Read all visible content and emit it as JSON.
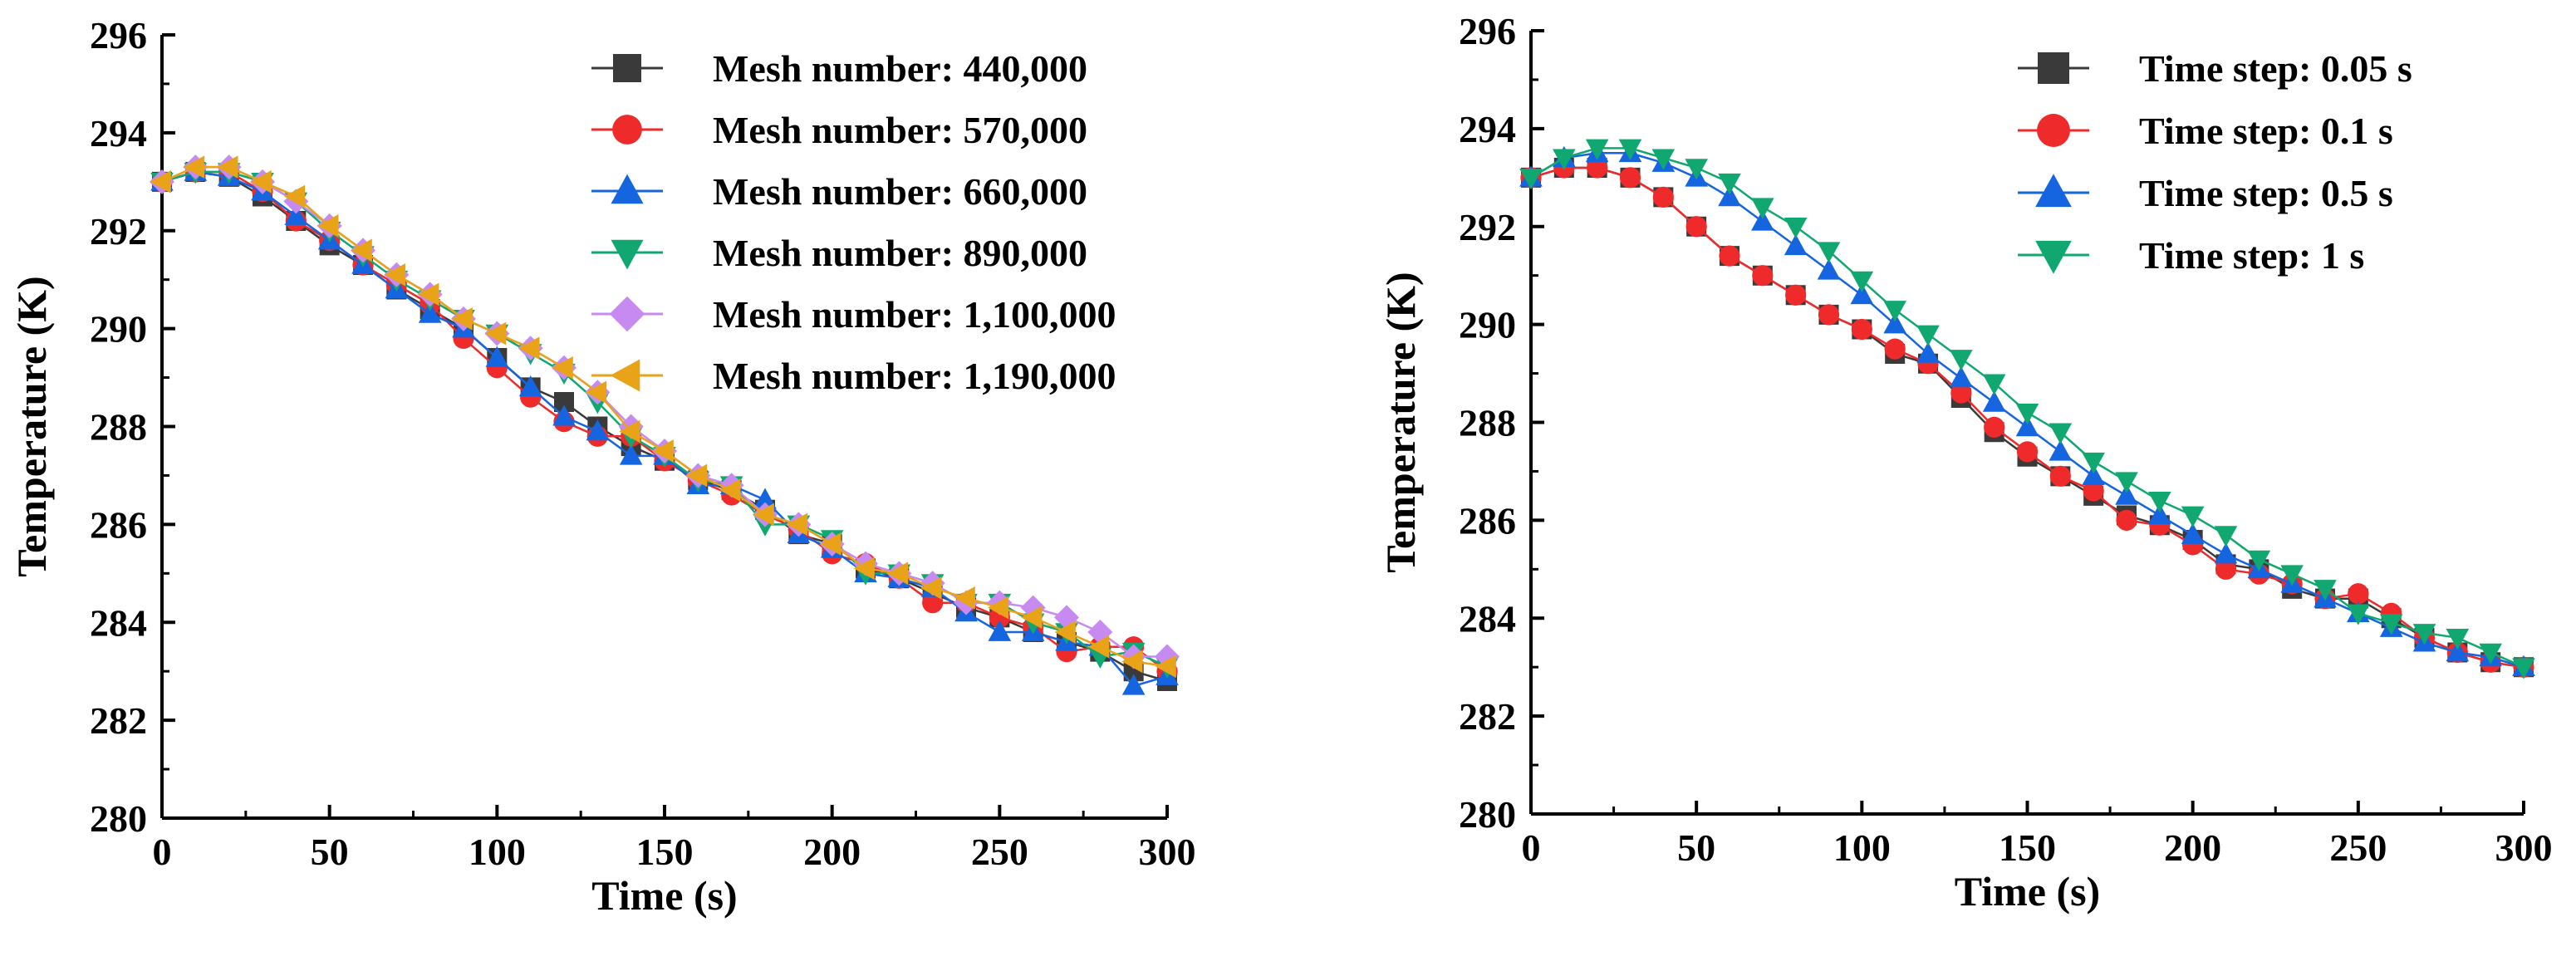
{
  "chart_data": [
    {
      "type": "line",
      "title": "",
      "xlabel": "Time (s)",
      "ylabel": "Temperature (K)",
      "xlim": [
        0,
        300
      ],
      "ylim": [
        280,
        296
      ],
      "xticks": [
        0,
        50,
        100,
        150,
        200,
        250,
        300
      ],
      "yticks": [
        280,
        282,
        284,
        286,
        288,
        290,
        292,
        294,
        296
      ],
      "legend_position": "top-right",
      "x": [
        0,
        10,
        20,
        30,
        40,
        50,
        60,
        70,
        80,
        90,
        100,
        110,
        120,
        130,
        140,
        150,
        160,
        170,
        180,
        190,
        200,
        210,
        220,
        230,
        240,
        250,
        260,
        270,
        280,
        290,
        300
      ],
      "series": [
        {
          "name": "Mesh number: 440,000",
          "color": "#3a3a3a",
          "marker": "square",
          "values": [
            293.0,
            293.2,
            293.1,
            292.7,
            292.2,
            291.7,
            291.3,
            290.8,
            290.4,
            290.0,
            289.4,
            288.8,
            288.5,
            288.0,
            287.6,
            287.3,
            286.9,
            286.7,
            286.3,
            285.8,
            285.6,
            285.1,
            284.9,
            284.6,
            284.3,
            284.1,
            283.8,
            283.6,
            283.4,
            283.0,
            282.8
          ]
        },
        {
          "name": "Mesh number: 570,000",
          "color": "#ee2a2a",
          "marker": "circle",
          "values": [
            293.0,
            293.2,
            293.2,
            292.8,
            292.2,
            291.8,
            291.3,
            290.9,
            290.5,
            289.8,
            289.2,
            288.6,
            288.1,
            287.8,
            287.8,
            287.3,
            286.9,
            286.6,
            286.2,
            285.9,
            285.4,
            285.2,
            284.9,
            284.4,
            284.4,
            284.1,
            283.9,
            283.4,
            283.5,
            283.5,
            283.0
          ]
        },
        {
          "name": "Mesh number: 660,000",
          "color": "#1565e0",
          "marker": "triangle-up",
          "values": [
            293.0,
            293.2,
            293.1,
            292.8,
            292.3,
            291.8,
            291.3,
            290.8,
            290.3,
            290.0,
            289.4,
            288.8,
            288.2,
            287.9,
            287.4,
            287.4,
            286.8,
            286.8,
            286.5,
            285.8,
            285.5,
            285.0,
            284.9,
            284.7,
            284.2,
            283.8,
            283.8,
            283.6,
            283.5,
            282.7,
            282.9
          ]
        },
        {
          "name": "Mesh number: 890,000",
          "color": "#10a870",
          "marker": "triangle-down",
          "values": [
            293.0,
            293.2,
            293.2,
            293.0,
            292.6,
            292.0,
            291.5,
            291.0,
            290.6,
            290.2,
            289.9,
            289.5,
            289.1,
            288.5,
            287.8,
            287.4,
            286.9,
            286.8,
            286.0,
            286.0,
            285.7,
            285.0,
            285.0,
            284.8,
            284.4,
            284.4,
            284.0,
            283.8,
            283.3,
            283.4,
            283.1
          ]
        },
        {
          "name": "Mesh number: 1,100,000",
          "color": "#c78af0",
          "marker": "diamond",
          "values": [
            293.0,
            293.3,
            293.3,
            293.0,
            292.6,
            292.1,
            291.6,
            291.1,
            290.7,
            290.2,
            289.9,
            289.6,
            289.2,
            288.7,
            288.0,
            287.5,
            287.0,
            286.8,
            286.2,
            286.0,
            285.6,
            285.2,
            285.0,
            284.8,
            284.4,
            284.4,
            284.3,
            284.1,
            283.8,
            283.3,
            283.3
          ]
        },
        {
          "name": "Mesh number: 1,190,000",
          "color": "#e8a318",
          "marker": "triangle-left",
          "values": [
            293.0,
            293.3,
            293.3,
            293.0,
            292.7,
            292.1,
            291.6,
            291.1,
            290.7,
            290.2,
            289.9,
            289.6,
            289.2,
            288.7,
            287.9,
            287.5,
            287.0,
            286.7,
            286.2,
            286.0,
            285.6,
            285.1,
            285.0,
            284.7,
            284.5,
            284.3,
            284.1,
            283.8,
            283.5,
            283.2,
            283.1
          ]
        }
      ]
    },
    {
      "type": "line",
      "title": "",
      "xlabel": "Time (s)",
      "ylabel": "Temperature (K)",
      "xlim": [
        0,
        300
      ],
      "ylim": [
        280,
        296
      ],
      "xticks": [
        0,
        50,
        100,
        150,
        200,
        250,
        300
      ],
      "yticks": [
        280,
        282,
        284,
        286,
        288,
        290,
        292,
        294,
        296
      ],
      "legend_position": "top-right",
      "x": [
        0,
        10,
        20,
        30,
        40,
        50,
        60,
        70,
        80,
        90,
        100,
        110,
        120,
        130,
        140,
        150,
        160,
        170,
        180,
        190,
        200,
        210,
        220,
        230,
        240,
        250,
        260,
        270,
        280,
        290,
        300
      ],
      "series": [
        {
          "name": "Time step: 0.05 s",
          "color": "#3a3a3a",
          "marker": "square",
          "values": [
            293.0,
            293.2,
            293.2,
            293.0,
            292.6,
            292.0,
            291.4,
            291.0,
            290.6,
            290.2,
            289.9,
            289.4,
            289.2,
            288.5,
            287.8,
            287.3,
            286.9,
            286.5,
            286.1,
            285.9,
            285.6,
            285.1,
            285.0,
            284.6,
            284.4,
            284.4,
            284.0,
            283.6,
            283.3,
            283.1,
            283.0
          ]
        },
        {
          "name": "Time step: 0.1 s",
          "color": "#ee2a2a",
          "marker": "circle",
          "values": [
            293.0,
            293.2,
            293.2,
            293.0,
            292.6,
            292.0,
            291.4,
            291.0,
            290.6,
            290.2,
            289.9,
            289.5,
            289.2,
            288.6,
            287.9,
            287.4,
            286.9,
            286.6,
            286.0,
            285.9,
            285.5,
            285.0,
            284.9,
            284.7,
            284.4,
            284.5,
            284.1,
            283.6,
            283.3,
            283.1,
            283.0
          ]
        },
        {
          "name": "Time step: 0.5 s",
          "color": "#1565e0",
          "marker": "triangle-up",
          "values": [
            293.0,
            293.4,
            293.5,
            293.5,
            293.3,
            293.0,
            292.6,
            292.1,
            291.6,
            291.1,
            290.6,
            290.0,
            289.4,
            288.9,
            288.4,
            287.9,
            287.4,
            286.9,
            286.5,
            286.1,
            285.7,
            285.3,
            285.0,
            284.7,
            284.4,
            284.1,
            283.8,
            283.5,
            283.3,
            283.2,
            283.0
          ]
        },
        {
          "name": "Time step: 1 s",
          "color": "#10a870",
          "marker": "triangle-down",
          "values": [
            293.0,
            293.4,
            293.6,
            293.6,
            293.4,
            293.2,
            292.9,
            292.4,
            292.0,
            291.5,
            290.9,
            290.3,
            289.8,
            289.3,
            288.8,
            288.2,
            287.8,
            287.2,
            286.8,
            286.4,
            286.1,
            285.7,
            285.2,
            284.9,
            284.6,
            284.1,
            283.9,
            283.7,
            283.6,
            283.3,
            283.0
          ]
        }
      ]
    }
  ]
}
